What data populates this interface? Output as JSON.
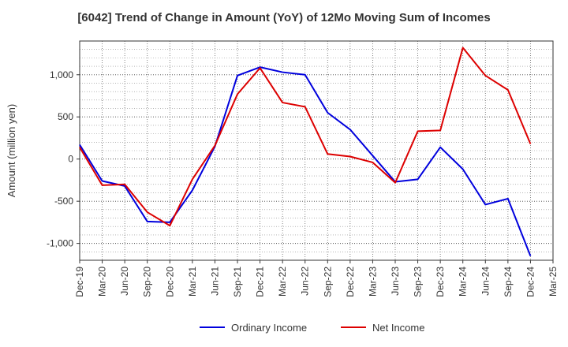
{
  "chart_data": {
    "type": "line",
    "title": "[6042]  Trend of Change in Amount (YoY) of 12Mo Moving Sum of Incomes",
    "ylabel": "Amount (million yen)",
    "xlabel": "",
    "categories": [
      "Dec-19",
      "Mar-20",
      "Jun-20",
      "Sep-20",
      "Dec-20",
      "Mar-21",
      "Jun-21",
      "Sep-21",
      "Dec-21",
      "Mar-22",
      "Jun-22",
      "Sep-22",
      "Dec-22",
      "Mar-23",
      "Jun-23",
      "Sep-23",
      "Dec-23",
      "Mar-24",
      "Jun-24",
      "Sep-24",
      "Dec-24",
      "Mar-25"
    ],
    "ylim": [
      -1200,
      1400
    ],
    "yticks": [
      -1000,
      -500,
      0,
      500,
      1000
    ],
    "ytick_labels": [
      "-1,000",
      "-500",
      "0",
      "500",
      "1,000"
    ],
    "grid": true,
    "legend_position": "bottom-center",
    "series": [
      {
        "name": "Ordinary Income",
        "color": "#0000dd",
        "values": [
          170,
          -260,
          -320,
          -740,
          -750,
          -370,
          150,
          990,
          1090,
          1030,
          1000,
          550,
          350,
          40,
          -270,
          -240,
          140,
          -120,
          -540,
          -470,
          -1150,
          null
        ]
      },
      {
        "name": "Net Income",
        "color": "#dd0000",
        "values": [
          140,
          -310,
          -300,
          -630,
          -790,
          -240,
          160,
          770,
          1080,
          670,
          620,
          60,
          30,
          -40,
          -280,
          330,
          340,
          1320,
          990,
          820,
          180,
          null
        ]
      }
    ]
  }
}
